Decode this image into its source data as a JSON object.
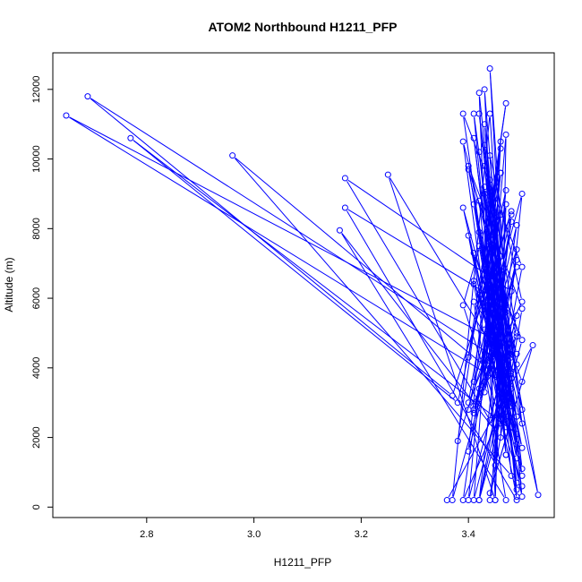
{
  "chart_data": {
    "type": "line",
    "title": "ATOM2 Northbound H1211_PFP",
    "xlabel": "H1211_PFP",
    "ylabel": "Altitude (m)",
    "xlim": [
      2.625,
      3.56
    ],
    "ylim": [
      -300,
      13050
    ],
    "x_ticks": [
      2.8,
      3.0,
      3.2,
      3.4
    ],
    "y_ticks": [
      0,
      2000,
      4000,
      6000,
      8000,
      10000,
      12000
    ],
    "grid": false,
    "series_color": "#0000ff",
    "series": [
      {
        "markers": "open-circle",
        "points": [
          [
            3.36,
            200
          ],
          [
            3.52,
            4650
          ],
          [
            3.44,
            400
          ],
          [
            3.5,
            3600
          ],
          [
            3.43,
            6500
          ],
          [
            3.47,
            2300
          ],
          [
            3.4,
            7800
          ],
          [
            3.49,
            1800
          ],
          [
            3.45,
            5100
          ],
          [
            3.41,
            2700
          ],
          [
            3.48,
            8200
          ],
          [
            3.44,
            4200
          ],
          [
            3.5,
            600
          ],
          [
            3.39,
            5800
          ],
          [
            3.46,
            9600
          ],
          [
            3.42,
            3100
          ],
          [
            3.49,
            6900
          ],
          [
            3.37,
            200
          ],
          [
            3.44,
            11300
          ],
          [
            3.47,
            4100
          ],
          [
            3.39,
            8600
          ],
          [
            3.48,
            2300
          ],
          [
            3.43,
            12000
          ],
          [
            3.45,
            5300
          ],
          [
            3.38,
            1900
          ],
          [
            3.46,
            10300
          ],
          [
            3.41,
            3600
          ],
          [
            3.49,
            7400
          ],
          [
            3.44,
            200
          ],
          [
            3.5,
            5700
          ],
          [
            3.4,
            9800
          ],
          [
            3.47,
            3000
          ],
          [
            3.42,
            7500
          ],
          [
            3.49,
            4400
          ],
          [
            3.39,
            10500
          ],
          [
            3.46,
            2400
          ],
          [
            3.43,
            6100
          ],
          [
            3.5,
            900
          ],
          [
            3.41,
            11300
          ],
          [
            3.45,
            4800
          ],
          [
            2.65,
            11250
          ],
          [
            3.48,
            3400
          ],
          [
            3.39,
            200
          ],
          [
            3.45,
            6700
          ],
          [
            3.47,
            1500
          ],
          [
            3.42,
            8800
          ],
          [
            3.49,
            4900
          ],
          [
            3.4,
            2800
          ],
          [
            3.46,
            7200
          ],
          [
            3.44,
            12600
          ],
          [
            3.48,
            3900
          ],
          [
            3.41,
            6400
          ],
          [
            3.49,
            300
          ],
          [
            3.43,
            10400
          ],
          [
            3.47,
            5600
          ],
          [
            3.4,
            3000
          ],
          [
            3.46,
            8400
          ],
          [
            3.45,
            1200
          ],
          [
            3.43,
            9200
          ],
          [
            3.48,
            4400
          ],
          [
            3.42,
            200
          ],
          [
            3.5,
            6900
          ],
          [
            3.39,
            11300
          ],
          [
            3.47,
            2600
          ],
          [
            3.44,
            7800
          ],
          [
            3.49,
            500
          ],
          [
            3.41,
            10600
          ],
          [
            3.46,
            4200
          ],
          [
            2.69,
            11800
          ],
          [
            3.37,
            3200
          ],
          [
            3.48,
            8500
          ],
          [
            3.43,
            5900
          ],
          [
            3.5,
            1700
          ],
          [
            3.4,
            9700
          ],
          [
            3.46,
            6800
          ],
          [
            3.45,
            200
          ],
          [
            3.42,
            11900
          ],
          [
            3.48,
            3100
          ],
          [
            3.41,
            6500
          ],
          [
            3.49,
            2100
          ],
          [
            2.77,
            10600
          ],
          [
            3.38,
            3000
          ],
          [
            3.47,
            9100
          ],
          [
            3.44,
            4700
          ],
          [
            3.5,
            300
          ],
          [
            3.43,
            11000
          ],
          [
            3.46,
            5400
          ],
          [
            3.41,
            2800
          ],
          [
            3.49,
            8100
          ],
          [
            3.45,
            3800
          ],
          [
            2.96,
            10100
          ],
          [
            3.48,
            900
          ],
          [
            3.44,
            7600
          ],
          [
            3.4,
            4300
          ],
          [
            3.47,
            11600
          ],
          [
            3.42,
            6100
          ],
          [
            3.5,
            2400
          ],
          [
            3.44,
            9400
          ],
          [
            3.49,
            5000
          ],
          [
            3.41,
            200
          ],
          [
            3.45,
            8300
          ],
          [
            3.43,
            3600
          ],
          [
            3.47,
            10700
          ],
          [
            3.46,
            2000
          ],
          [
            3.16,
            7950
          ],
          [
            3.47,
            200
          ],
          [
            3.41,
            5900
          ],
          [
            3.49,
            4100
          ],
          [
            3.43,
            9000
          ],
          [
            3.47,
            1500
          ],
          [
            3.44,
            6600
          ],
          [
            3.48,
            3000
          ],
          [
            3.42,
            10200
          ],
          [
            3.46,
            4500
          ],
          [
            3.49,
            700
          ],
          [
            3.41,
            8700
          ],
          [
            3.46,
            5300
          ],
          [
            3.5,
            2800
          ],
          [
            3.43,
            9800
          ],
          [
            3.49,
            200
          ],
          [
            3.17,
            8600
          ],
          [
            3.47,
            5800
          ],
          [
            3.43,
            3300
          ],
          [
            3.49,
            7100
          ],
          [
            3.4,
            1600
          ],
          [
            3.46,
            10500
          ],
          [
            3.44,
            4000
          ],
          [
            3.48,
            6200
          ],
          [
            3.17,
            9450
          ],
          [
            3.44,
            2500
          ],
          [
            3.49,
            5500
          ],
          [
            3.4,
            200
          ],
          [
            3.46,
            9600
          ],
          [
            3.43,
            6900
          ],
          [
            3.48,
            2900
          ],
          [
            3.42,
            11300
          ],
          [
            3.48,
            4300
          ],
          [
            3.41,
            7300
          ],
          [
            3.49,
            1400
          ],
          [
            3.44,
            10100
          ],
          [
            3.5,
            5900
          ],
          [
            3.42,
            3400
          ],
          [
            3.47,
            8700
          ],
          [
            3.45,
            200
          ],
          [
            3.25,
            9550
          ],
          [
            3.48,
            3700
          ],
          [
            3.46,
            6800
          ],
          [
            3.45,
            1500
          ],
          [
            3.5,
            9000
          ],
          [
            3.43,
            5100
          ],
          [
            3.49,
            2600
          ],
          [
            3.42,
            7900
          ],
          [
            3.53,
            350
          ],
          [
            3.46,
            6300
          ],
          [
            3.5,
            4800
          ],
          [
            3.42,
            200
          ],
          [
            3.48,
            8400
          ],
          [
            3.44,
            5700
          ],
          [
            3.5,
            1100
          ],
          [
            3.45,
            7800
          ]
        ]
      }
    ]
  }
}
